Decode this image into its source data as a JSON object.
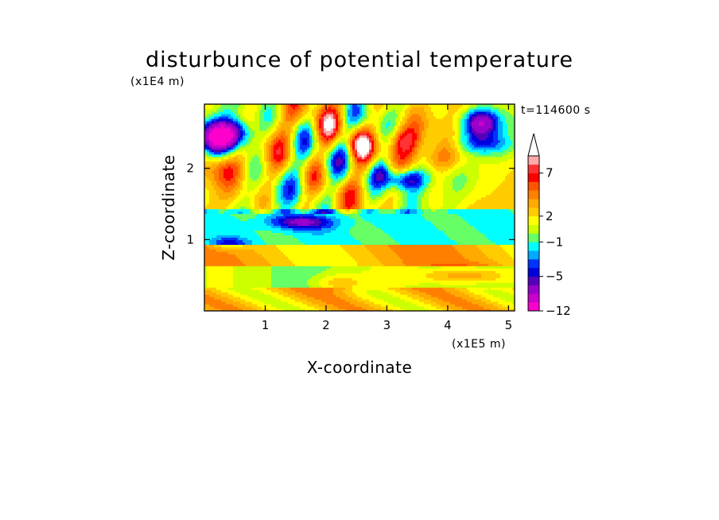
{
  "chart_data": {
    "type": "heatmap",
    "title": "disturbunce of potential temperature",
    "time_label": "t=114600 s",
    "xlabel": "X-coordinate",
    "ylabel": "Z-coordinate",
    "x_unit": "(x1E5 m)",
    "y_unit": "(x1E4 m)",
    "xlim": [
      0,
      5.1
    ],
    "ylim": [
      0,
      2.9
    ],
    "x_ticks": [
      "1",
      "2",
      "3",
      "4",
      "5"
    ],
    "y_ticks": [
      "1",
      "2"
    ],
    "colorbar": {
      "levels": [
        -12,
        -10,
        -8,
        -6,
        -5,
        -4,
        -3,
        -2,
        -1,
        0,
        1,
        2,
        3,
        4,
        5,
        6,
        7,
        8,
        9
      ],
      "colors": [
        "#ff00cc",
        "#cc00cc",
        "#9900cc",
        "#5500bb",
        "#0000dd",
        "#0033ff",
        "#00aaff",
        "#00ffff",
        "#66ff66",
        "#ccff00",
        "#ffff00",
        "#ffcc00",
        "#ffaa00",
        "#ff8000",
        "#ff5500",
        "#ff0000",
        "#ff3333",
        "#ffaaaa"
      ],
      "extend_color": "#ffffff",
      "tick_labels": [
        "-12",
        "-5",
        "-1",
        "2",
        "7"
      ],
      "tick_levels": [
        -12,
        -5,
        -1,
        2,
        7
      ]
    },
    "grid": false,
    "legend": "right colorbar"
  }
}
